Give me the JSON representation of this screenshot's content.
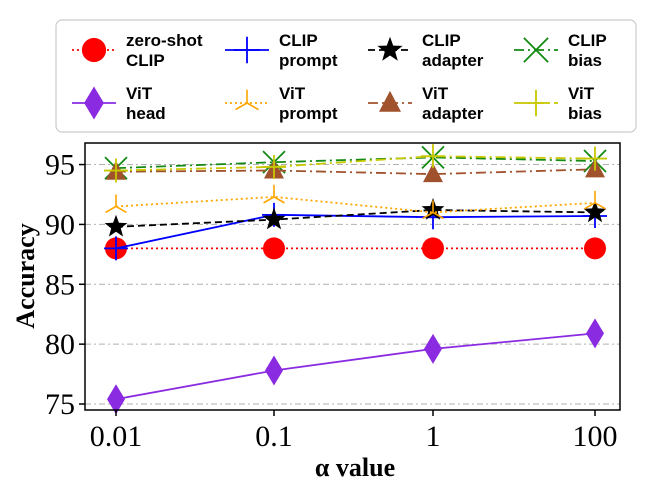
{
  "chart_data": {
    "type": "line",
    "title": "",
    "xlabel": "α value",
    "ylabel": "Accuracy",
    "x_scale": "log",
    "x": [
      0.01,
      0.1,
      1,
      100
    ],
    "x_tick_labels": [
      "0.01",
      "0.1",
      "1",
      "100"
    ],
    "ylim": [
      74.5,
      96.8
    ],
    "y_ticks": [
      75,
      80,
      85,
      90,
      95
    ],
    "y_tick_labels": [
      "75",
      "80",
      "85",
      "90",
      "95"
    ],
    "grid": "horizontal dash-dot",
    "legend_position": "top",
    "series": [
      {
        "id": "zs-clip",
        "name_lines": [
          "zero-shot",
          "CLIP"
        ],
        "color": "#ff0000",
        "linestyle": "dotted",
        "marker": "circle",
        "values": [
          88.0,
          88.0,
          88.0,
          88.0
        ]
      },
      {
        "id": "clip-prompt",
        "name_lines": [
          "CLIP",
          "prompt"
        ],
        "color": "#0000ff",
        "linestyle": "solid",
        "marker": "plus",
        "values": [
          88.0,
          90.8,
          90.6,
          90.7
        ]
      },
      {
        "id": "clip-adapter",
        "name_lines": [
          "CLIP",
          "adapter"
        ],
        "color": "#000000",
        "linestyle": "dashed",
        "marker": "star",
        "values": [
          89.8,
          90.4,
          91.2,
          91.0
        ]
      },
      {
        "id": "clip-bias",
        "name_lines": [
          "CLIP",
          "bias"
        ],
        "color": "#138a13",
        "linestyle": "dashdot",
        "marker": "x",
        "values": [
          94.7,
          95.2,
          95.6,
          95.3
        ]
      },
      {
        "id": "vit-head",
        "name_lines": [
          "ViT",
          "head"
        ],
        "color": "#8a2be2",
        "linestyle": "solid",
        "marker": "diamond",
        "values": [
          75.4,
          77.8,
          79.6,
          80.9
        ]
      },
      {
        "id": "vit-prompt",
        "name_lines": [
          "ViT",
          "prompt"
        ],
        "color": "#ffa500",
        "linestyle": "dotted",
        "marker": "tri",
        "values": [
          91.5,
          92.3,
          91.0,
          91.8
        ]
      },
      {
        "id": "vit-adapter",
        "name_lines": [
          "ViT",
          "adapter"
        ],
        "color": "#a0522d",
        "linestyle": "dashdot",
        "marker": "triangle",
        "values": [
          94.4,
          94.5,
          94.2,
          94.6
        ]
      },
      {
        "id": "vit-bias",
        "name_lines": [
          "ViT",
          "bias"
        ],
        "color": "#c8c800",
        "linestyle": "dashdot",
        "marker": "plus",
        "values": [
          94.5,
          94.8,
          95.7,
          95.5
        ]
      }
    ]
  }
}
